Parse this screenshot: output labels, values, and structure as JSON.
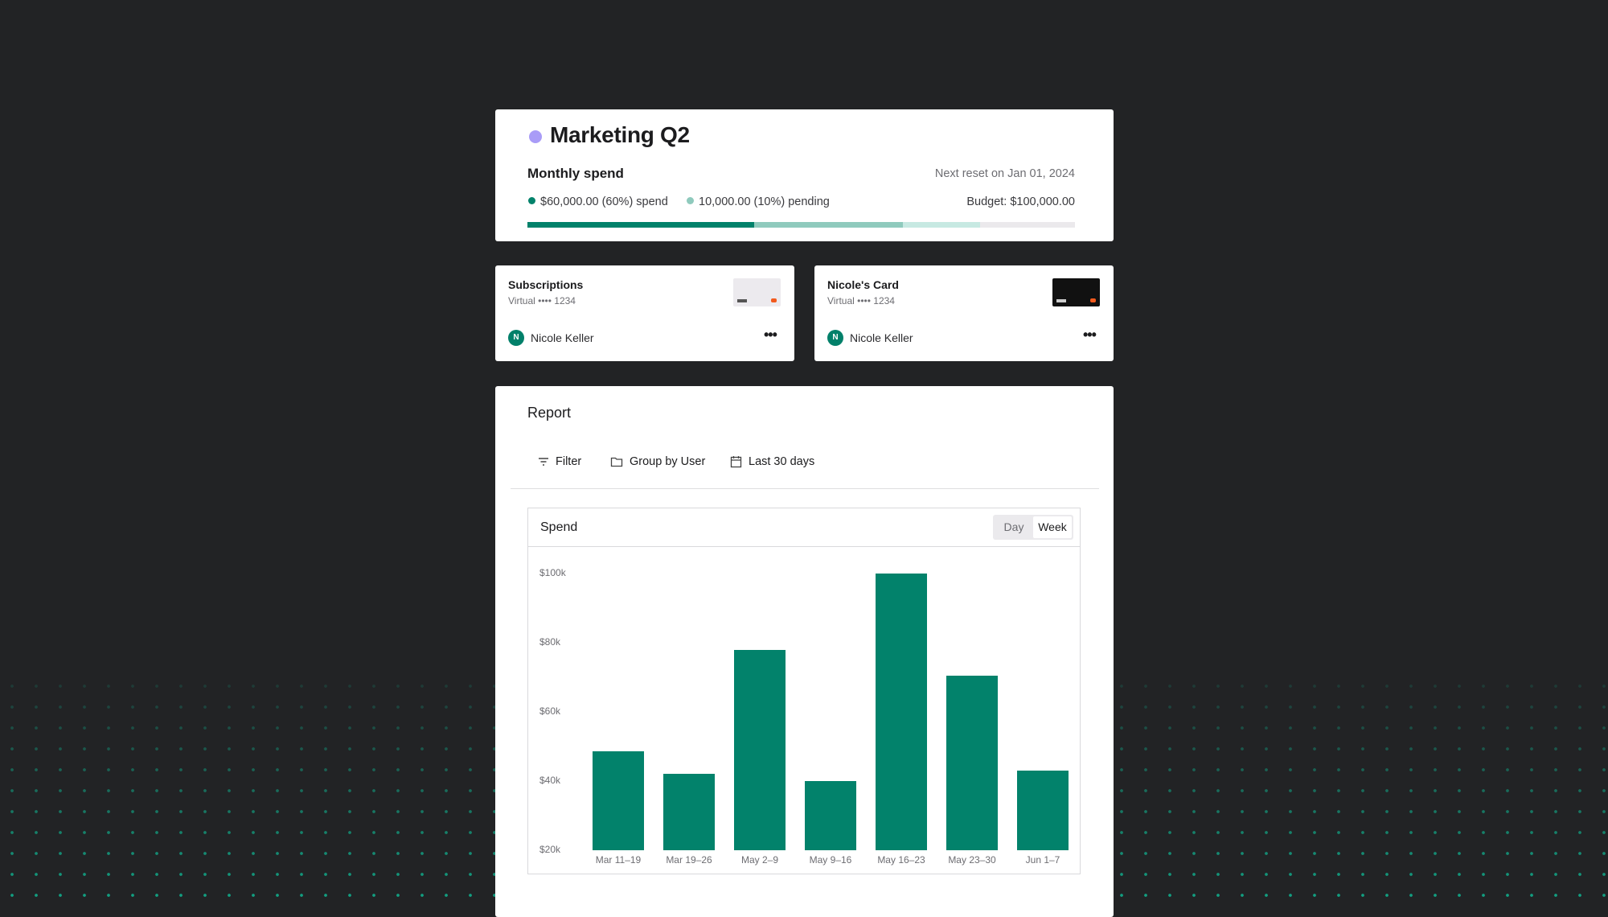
{
  "colors": {
    "accent": "#02826b",
    "pending": "#8fcabd",
    "available": "#c7e9e2",
    "remaining": "#ebe9ec",
    "title_dot": "#a99cf7"
  },
  "header": {
    "title": "Marketing Q2",
    "subtitle": "Monthly spend",
    "reset": "Next reset on Jan 01, 2024",
    "spend": "$60,000.00 (60%) spend",
    "pending": "10,000.00 (10%) pending",
    "budget": "Budget: $100,000.00",
    "progress": {
      "spend_percent": 60,
      "pending_percent": 10,
      "light_percent": 15
    }
  },
  "cards": [
    {
      "name": "Subscriptions",
      "detail": "Virtual •••• 1234",
      "owner": "Nicole Keller",
      "initial": "N",
      "style": "light"
    },
    {
      "name": "Nicole's Card",
      "detail": "Virtual •••• 1234",
      "owner": "Nicole Keller",
      "initial": "N",
      "style": "dark"
    }
  ],
  "report": {
    "title": "Report",
    "filter": "Filter",
    "group": "Group by User",
    "range": "Last 30 days",
    "chart_title": "Spend",
    "toggle": [
      "Day",
      "Week"
    ],
    "toggle_selected": "Week"
  },
  "chart_data": {
    "type": "bar",
    "title": "Spend",
    "categories": [
      "Mar 11–19",
      "Mar 19–26",
      "May 2–9",
      "May 9–16",
      "May 16–23",
      "May 23–30",
      "Jun 1–7"
    ],
    "values": [
      48500,
      42000,
      78000,
      40000,
      100000,
      70500,
      43000
    ],
    "yticks": [
      "$100k",
      "$80k",
      "$60k",
      "$40k",
      "$20k"
    ],
    "ytick_values": [
      100000,
      80000,
      60000,
      40000,
      20000
    ],
    "ylim": [
      20000,
      100000
    ],
    "grid": false
  }
}
